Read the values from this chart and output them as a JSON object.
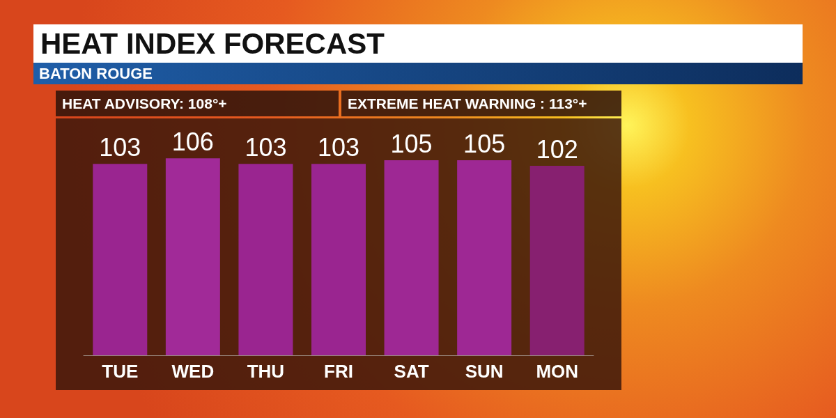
{
  "chart_data": {
    "type": "bar",
    "title": "HEAT INDEX FORECAST",
    "subtitle": "BATON ROUGE",
    "annotations": [
      "HEAT ADVISORY: 108°+",
      "EXTREME HEAT WARNING : 113°+"
    ],
    "categories": [
      "TUE",
      "WED",
      "THU",
      "FRI",
      "SAT",
      "SUN",
      "MON"
    ],
    "values": [
      103,
      106,
      103,
      103,
      105,
      105,
      102
    ],
    "colors": [
      "#9a2590",
      "#a12a98",
      "#9a2590",
      "#9a2590",
      "#9e2894",
      "#9e2894",
      "#872070"
    ],
    "data_labels": true,
    "tick_labels": "x"
  }
}
